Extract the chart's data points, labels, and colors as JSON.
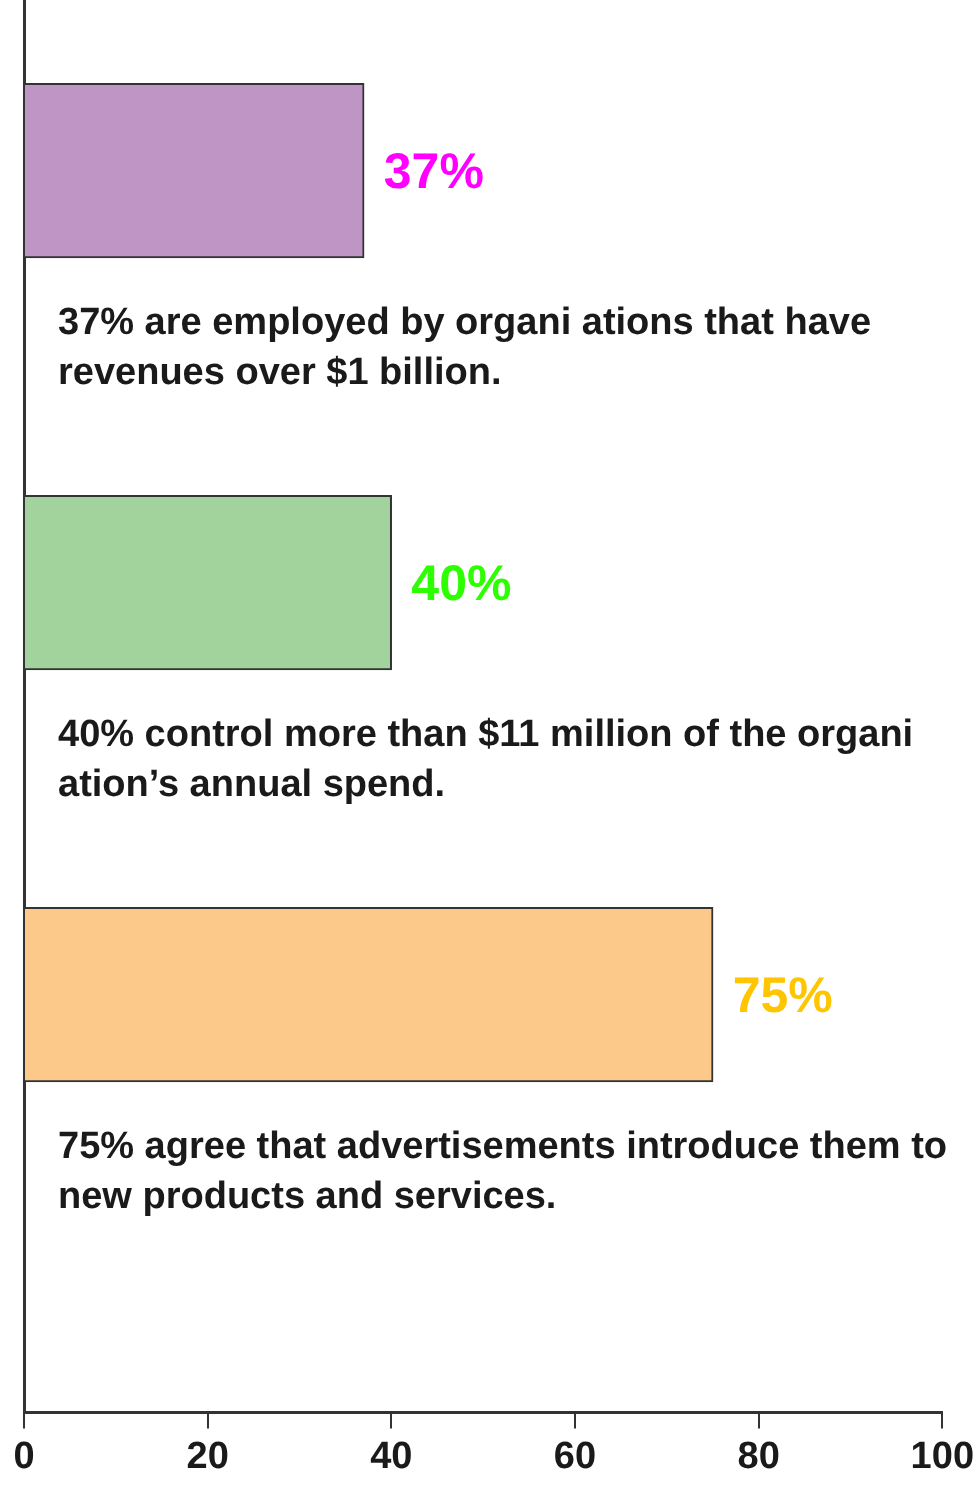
{
  "chart_data": {
    "type": "bar",
    "orientation": "horizontal",
    "categories": [
      null,
      null,
      null
    ],
    "values": [
      37,
      40,
      75
    ],
    "colors": [
      "#bf95c6",
      "#a3d39c",
      "#fdc98a"
    ],
    "value_labels": [
      "37%",
      "40%",
      "75%"
    ],
    "xlim": [
      0,
      100
    ],
    "xticks": [
      0,
      20,
      40,
      60,
      80,
      100
    ],
    "grid": false,
    "legend": false,
    "annotations": [
      "37% are employed by organi ations that have revenues over $1 billion.",
      "40% control more than $11 million of the organi ation’s annual spend.",
      "75% agree that advertisements introduce them to new products and services."
    ]
  }
}
